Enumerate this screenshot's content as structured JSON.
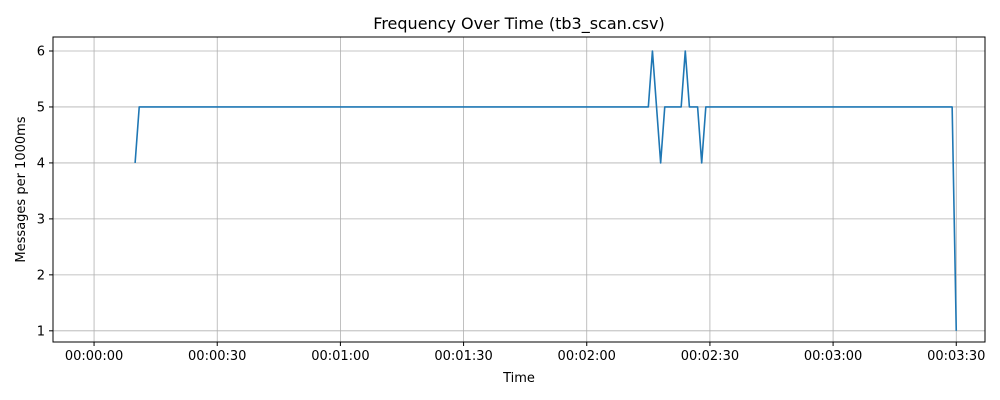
{
  "chart_data": {
    "type": "line",
    "title": "Frequency Over Time (tb3_scan.csv)",
    "xlabel": "Time",
    "ylabel": "Messages per 1000ms",
    "x_unit": "time (HH:MM:SS)",
    "xlim": [
      "-00:00:10",
      "00:03:37"
    ],
    "ylim": [
      0.8,
      6.25
    ],
    "grid": true,
    "legend": "none",
    "line_color": "#1f77b4",
    "x_ticks": [
      "00:00:00",
      "00:00:30",
      "00:01:00",
      "00:01:30",
      "00:02:00",
      "00:02:30",
      "00:03:00",
      "00:03:30"
    ],
    "y_ticks": [
      1,
      2,
      3,
      4,
      5,
      6
    ],
    "series": [
      {
        "points": [
          [
            "00:00:10",
            4
          ],
          [
            "00:00:11",
            5
          ],
          [
            "00:00:12",
            5
          ],
          [
            "00:02:15",
            5
          ],
          [
            "00:02:16",
            6
          ],
          [
            "00:02:17",
            5
          ],
          [
            "00:02:18",
            4
          ],
          [
            "00:02:19",
            5
          ],
          [
            "00:02:23",
            5
          ],
          [
            "00:02:24",
            6
          ],
          [
            "00:02:25",
            5
          ],
          [
            "00:02:27",
            5
          ],
          [
            "00:02:28",
            4
          ],
          [
            "00:02:29",
            5
          ],
          [
            "00:03:29",
            5
          ],
          [
            "00:03:30",
            1
          ]
        ]
      }
    ]
  }
}
